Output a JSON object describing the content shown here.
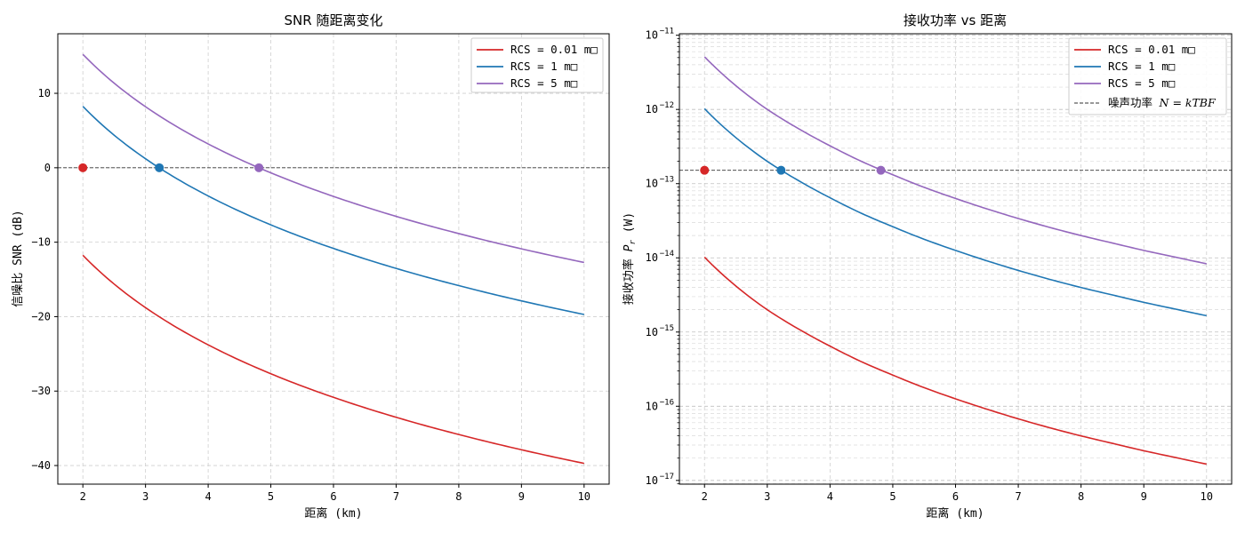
{
  "chart_data": [
    {
      "type": "line",
      "title": "SNR 随距离变化",
      "xlabel": "距离 (km)",
      "ylabel": "信噪比 SNR (dB)",
      "xlim": [
        1.6,
        10.4
      ],
      "ylim": [
        -42.5,
        18
      ],
      "xticks": [
        2,
        3,
        4,
        5,
        6,
        7,
        8,
        9,
        10
      ],
      "yticks": [
        10,
        0,
        -10,
        -20,
        -30,
        -40
      ],
      "grid": true,
      "legend_loc": "upper right",
      "x": [
        2,
        2.5,
        3,
        3.5,
        4,
        4.5,
        5,
        5.5,
        6,
        6.5,
        7,
        7.5,
        8,
        8.5,
        9,
        9.5,
        10
      ],
      "series": [
        {
          "name": "RCS = 0.01 m□",
          "color": "#d62728",
          "values": [
            -11.75,
            -15.63,
            -18.79,
            -21.47,
            -23.79,
            -25.84,
            -27.67,
            -29.33,
            -30.84,
            -32.23,
            -33.52,
            -34.72,
            -35.83,
            -36.89,
            -37.88,
            -38.82,
            -39.71
          ]
        },
        {
          "name": "RCS = 1 m□",
          "color": "#1f77b4",
          "values": [
            8.25,
            4.37,
            1.21,
            -1.47,
            -3.79,
            -5.84,
            -7.67,
            -9.33,
            -10.84,
            -12.23,
            -13.52,
            -14.72,
            -15.83,
            -16.89,
            -17.88,
            -18.82,
            -19.71
          ]
        },
        {
          "name": "RCS = 5 m□",
          "color": "#9467bd",
          "values": [
            15.24,
            11.36,
            8.2,
            5.52,
            3.2,
            1.15,
            -0.68,
            -2.34,
            -3.85,
            -5.24,
            -6.53,
            -7.73,
            -8.84,
            -9.9,
            -10.89,
            -11.83,
            -12.72
          ]
        }
      ],
      "reference_line": {
        "y": 0,
        "style": "dashed",
        "color": "#333333"
      },
      "markers": [
        {
          "x": 2,
          "y": 0,
          "color": "#d62728"
        },
        {
          "x": 3.22,
          "y": 0,
          "color": "#1f77b4"
        },
        {
          "x": 4.81,
          "y": 0,
          "color": "#9467bd"
        }
      ]
    },
    {
      "type": "line",
      "yscale": "log",
      "title": "接收功率 vs 距离",
      "xlabel": "距离 (km)",
      "ylabel": "接收功率 Pr (W)",
      "ylabel_main": "接收功率 ",
      "ylabel_symbol": "P",
      "ylabel_sub": "r",
      "ylabel_unit": " (W)",
      "xlim": [
        1.6,
        10.4
      ],
      "ylim_log10": [
        -17.05,
        -10.98
      ],
      "xticks": [
        2,
        3,
        4,
        5,
        6,
        7,
        8,
        9,
        10
      ],
      "yticks_log10": [
        -11,
        -12,
        -13,
        -14,
        -15,
        -16,
        -17
      ],
      "ytick_labels": [
        {
          "base": "10",
          "exp": "−11"
        },
        {
          "base": "10",
          "exp": "−12"
        },
        {
          "base": "10",
          "exp": "−13"
        },
        {
          "base": "10",
          "exp": "−14"
        },
        {
          "base": "10",
          "exp": "−15"
        },
        {
          "base": "10",
          "exp": "−16"
        },
        {
          "base": "10",
          "exp": "−17"
        }
      ],
      "grid": true,
      "legend_loc": "upper right",
      "x": [
        2,
        2.5,
        3,
        3.5,
        4,
        4.5,
        5,
        5.5,
        6,
        6.5,
        7,
        7.5,
        8,
        8.5,
        9,
        9.5,
        10
      ],
      "series": [
        {
          "name": "RCS = 0.01 m□",
          "color": "#d62728",
          "log10_values": [
            -13.99,
            -14.38,
            -14.7,
            -14.96,
            -15.19,
            -15.4,
            -15.58,
            -15.75,
            -15.9,
            -16.04,
            -16.17,
            -16.29,
            -16.4,
            -16.5,
            -16.6,
            -16.69,
            -16.78
          ]
        },
        {
          "name": "RCS = 1 m□",
          "color": "#1f77b4",
          "log10_values": [
            -11.99,
            -12.38,
            -12.7,
            -12.96,
            -13.19,
            -13.4,
            -13.58,
            -13.75,
            -13.9,
            -14.04,
            -14.17,
            -14.29,
            -14.4,
            -14.5,
            -14.6,
            -14.69,
            -14.78
          ]
        },
        {
          "name": "RCS = 5 m□",
          "color": "#9467bd",
          "log10_values": [
            -11.29,
            -11.68,
            -12.0,
            -12.26,
            -12.49,
            -12.7,
            -12.88,
            -13.05,
            -13.2,
            -13.34,
            -13.47,
            -13.59,
            -13.7,
            -13.8,
            -13.9,
            -13.99,
            -14.08
          ]
        }
      ],
      "reference_line": {
        "name": "噪声功率 N = kTBF",
        "label_text": "噪声功率 ",
        "label_math": "N = kTBF",
        "log10_y": -12.82,
        "style": "dashed",
        "color": "#333333"
      },
      "markers": [
        {
          "x": 2,
          "log10_y": -12.82,
          "color": "#d62728"
        },
        {
          "x": 3.22,
          "log10_y": -12.82,
          "color": "#1f77b4"
        },
        {
          "x": 4.81,
          "log10_y": -12.82,
          "color": "#9467bd"
        }
      ]
    }
  ]
}
